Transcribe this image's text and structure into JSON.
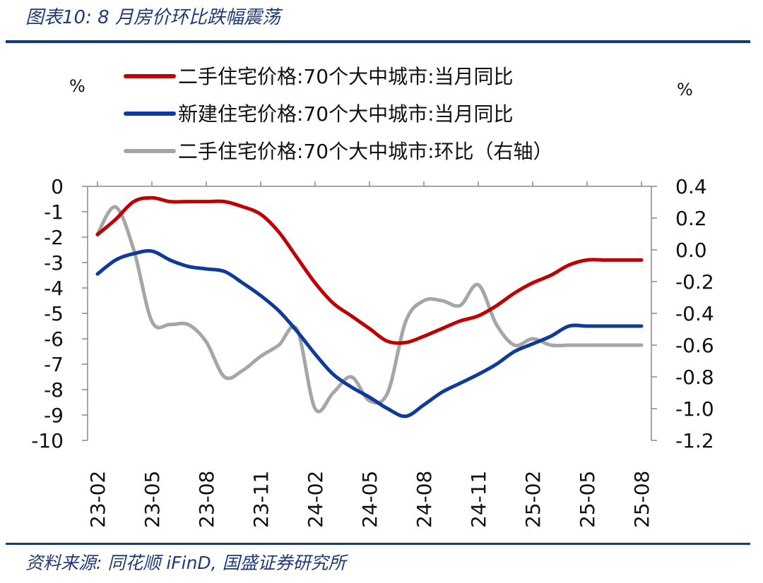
{
  "figure": {
    "title": "图表10:  8 月房价环比跌幅震荡",
    "source": "资料来源:  同花顺 iFinD,  国盛证券研究所"
  },
  "chart_data": {
    "type": "line",
    "left_axis_unit": "%",
    "right_axis_unit": "%",
    "left_ylim": [
      -10,
      0
    ],
    "left_yticks": [
      "0",
      "-1",
      "-2",
      "-3",
      "-4",
      "-5",
      "-6",
      "-7",
      "-8",
      "-9",
      "-10"
    ],
    "right_ylim": [
      -1.2,
      0.4
    ],
    "right_yticks": [
      "0.4",
      "0.2",
      "0.0",
      "-0.2",
      "-0.4",
      "-0.6",
      "-0.8",
      "-1.0",
      "-1.2"
    ],
    "x_tick_labels": [
      "23-02",
      "23-05",
      "23-08",
      "23-11",
      "24-02",
      "24-05",
      "24-08",
      "24-11",
      "25-02",
      "25-05",
      "25-08"
    ],
    "x": [
      "23-02",
      "23-03",
      "23-04",
      "23-05",
      "23-06",
      "23-07",
      "23-08",
      "23-09",
      "23-10",
      "23-11",
      "23-12",
      "24-01",
      "24-02",
      "24-03",
      "24-04",
      "24-05",
      "24-06",
      "24-07",
      "24-08",
      "24-09",
      "24-10",
      "24-11",
      "24-12",
      "25-01",
      "25-02",
      "25-03",
      "25-04",
      "25-05",
      "25-06",
      "25-07",
      "25-08"
    ],
    "series": [
      {
        "name": "二手住宅价格:70个大中城市:当月同比",
        "color": "#c00000",
        "axis": "left",
        "values": [
          -1.9,
          -1.3,
          -0.6,
          -0.45,
          -0.6,
          -0.6,
          -0.6,
          -0.6,
          -0.8,
          -1.1,
          -1.8,
          -2.8,
          -3.8,
          -4.6,
          -5.1,
          -5.6,
          -6.1,
          -6.15,
          -5.9,
          -5.6,
          -5.3,
          -5.1,
          -4.7,
          -4.2,
          -3.8,
          -3.5,
          -3.1,
          -2.9,
          -2.9,
          -2.9,
          -2.9
        ]
      },
      {
        "name": "新建住宅价格:70个大中城市:当月同比",
        "color": "#0e3a9a",
        "axis": "left",
        "values": [
          -3.45,
          -2.9,
          -2.65,
          -2.55,
          -2.9,
          -3.15,
          -3.25,
          -3.35,
          -3.8,
          -4.3,
          -4.9,
          -5.7,
          -6.6,
          -7.4,
          -7.9,
          -8.3,
          -8.75,
          -9.05,
          -8.6,
          -8.1,
          -7.75,
          -7.4,
          -7.0,
          -6.5,
          -6.2,
          -5.9,
          -5.5,
          -5.5,
          -5.5,
          -5.5,
          -5.5
        ]
      },
      {
        "name": "二手住宅价格:70个大中城市:环比（右轴）",
        "color": "#a6a6a6",
        "axis": "right",
        "values": [
          0.1,
          0.27,
          0.0,
          -0.45,
          -0.47,
          -0.47,
          -0.58,
          -0.8,
          -0.76,
          -0.67,
          -0.6,
          -0.5,
          -1.0,
          -0.9,
          -0.8,
          -0.95,
          -0.9,
          -0.45,
          -0.32,
          -0.32,
          -0.35,
          -0.22,
          -0.47,
          -0.6,
          -0.56,
          -0.6,
          -0.6,
          -0.6,
          -0.6,
          -0.6,
          -0.6
        ]
      }
    ],
    "legend": "top"
  }
}
